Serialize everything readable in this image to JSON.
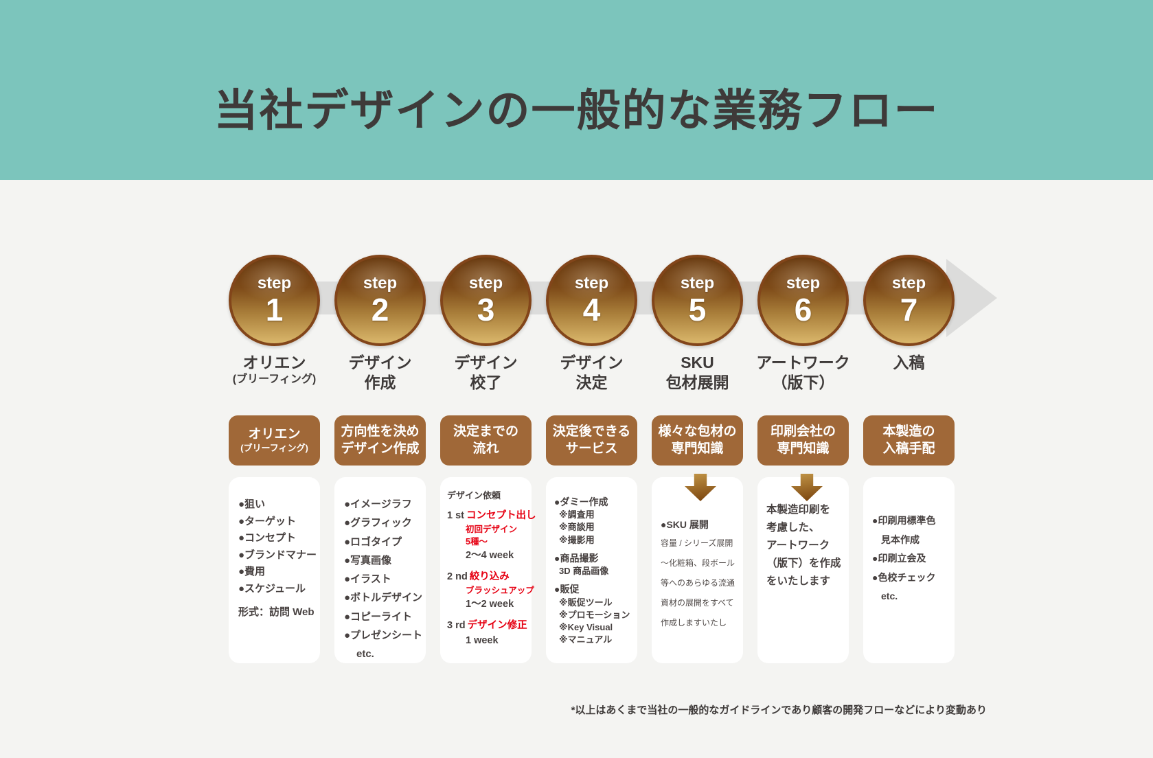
{
  "title": "当社デザインの一般的な業務フロー",
  "colors": {
    "band_teal": "#7cc5bc",
    "page_bg": "#f4f4f2",
    "header_brown": "#a06838",
    "circle_dark": "#643409",
    "circle_light": "#dab76b",
    "arrow_gray": "#dcdcdb",
    "accent_red": "#e60012",
    "text_dark": "#3e3a39"
  },
  "steps": [
    {
      "badge": "step",
      "num": "1",
      "line1": "オリエン",
      "line2": "(ブリーフィング)"
    },
    {
      "badge": "step",
      "num": "2",
      "line1": "デザイン",
      "line2": "作成"
    },
    {
      "badge": "step",
      "num": "3",
      "line1": "デザイン",
      "line2": "校了"
    },
    {
      "badge": "step",
      "num": "4",
      "line1": "デザイン",
      "line2": "決定"
    },
    {
      "badge": "step",
      "num": "5",
      "line1": "SKU",
      "line2": "包材展開"
    },
    {
      "badge": "step",
      "num": "6",
      "line1": "アートワーク",
      "line2": "（版下）"
    },
    {
      "badge": "step",
      "num": "7",
      "line1": "入稿",
      "line2": ""
    }
  ],
  "headers": [
    {
      "line1": "オリエン",
      "line2": "(ブリーフィング)"
    },
    {
      "line1": "方向性を決め",
      "line2": "デザイン作成"
    },
    {
      "line1": "決定までの",
      "line2": "流れ"
    },
    {
      "line1": "決定後できる",
      "line2": "サービス"
    },
    {
      "line1": "様々な包材の",
      "line2": "専門知識"
    },
    {
      "line1": "印刷会社の",
      "line2": "専門知識"
    },
    {
      "line1": "本製造の",
      "line2": "入稿手配"
    }
  ],
  "cards": {
    "c1": {
      "items": [
        "●狙い",
        "●ターゲット",
        "●コンセプト",
        "●ブランドマナー",
        "●費用",
        "●スケジュール"
      ],
      "format_line": "形式：訪問 Web"
    },
    "c2": {
      "items": [
        "●イメージラフ",
        "●グラフィック",
        "●ロゴタイプ",
        "●写真画像",
        "●イラスト",
        "●ボトルデザイン",
        "●コピーライト",
        "●プレゼンシート"
      ],
      "etc": "etc."
    },
    "c3": {
      "request_label": "デザイン依頼",
      "phases": [
        {
          "ord": "1 st",
          "red_main": "コンセプト出し",
          "red_subs": [
            "初回デザイン",
            "5種〜"
          ],
          "duration": "2〜4 week"
        },
        {
          "ord": "2 nd",
          "red_main": "絞り込み",
          "red_subs": [
            "ブラッシュアップ"
          ],
          "duration": "1〜2 week"
        },
        {
          "ord": "3 rd",
          "red_main": "デザイン修正",
          "red_subs": [],
          "duration": "1 week"
        }
      ]
    },
    "c4": {
      "groups": [
        {
          "bullet": "●ダミー作成",
          "subs": [
            "※調査用",
            "※商談用",
            "※撮影用"
          ]
        },
        {
          "bullet": "●商品撮影",
          "subs": [
            "3D 商品画像"
          ]
        },
        {
          "bullet": "●販促",
          "subs": [
            "※販促ツール",
            "※プロモーション",
            "※Key Visual",
            "※マニュアル"
          ]
        }
      ]
    },
    "c5": {
      "head": "●SKU 展開",
      "lines": [
        "容量 / シリーズ展開",
        "〜化粧箱、段ボール",
        "等へのあらゆる流通",
        "資材の展開をすべて",
        "作成しますいたし"
      ]
    },
    "c6": {
      "lines": [
        "本製造印刷を",
        "考慮した、",
        "アートワーク",
        "（版下）を作成",
        "をいたします"
      ]
    },
    "c7": {
      "lines": [
        "●印刷用標準色",
        "見本作成",
        "●印刷立会及",
        "●色校チェック",
        "etc."
      ]
    }
  },
  "footnote": "*以上はあくまで当社の一般的なガイドラインであり顧客の開発フローなどにより変動あり"
}
